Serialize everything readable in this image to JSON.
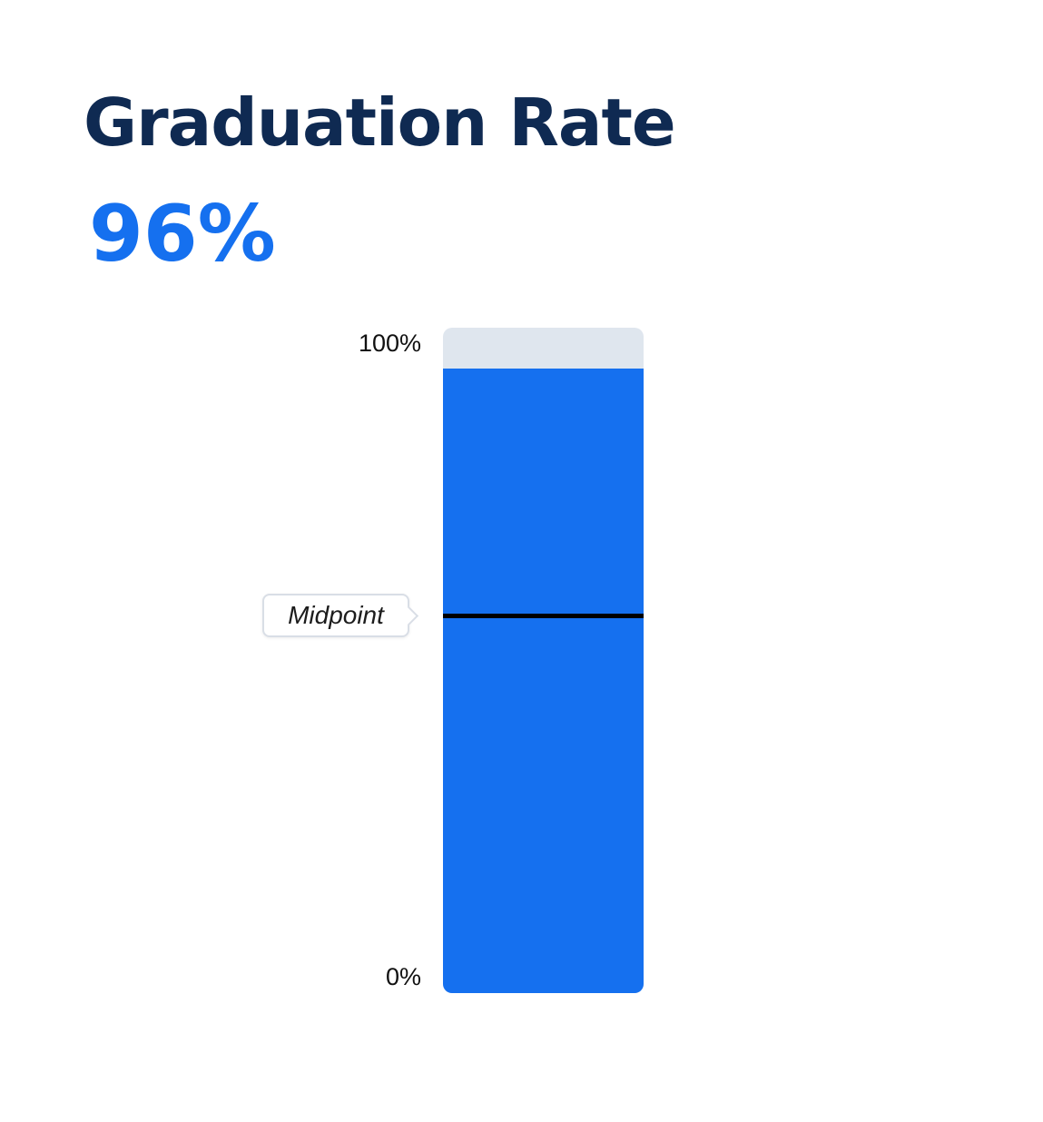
{
  "title": "Graduation Rate",
  "value_text": "96%",
  "colors": {
    "title": "#0f2a52",
    "accent": "#1570ef",
    "track": "#dfe6ee",
    "marker": "#000000"
  },
  "chart_data": {
    "type": "bar",
    "title": "Graduation Rate",
    "categories": [
      ""
    ],
    "values": [
      96
    ],
    "ylim": [
      0,
      100
    ],
    "yunit": "%",
    "ticks": [
      {
        "value": 100,
        "label": "100%"
      },
      {
        "value": 0,
        "label": "0%"
      }
    ],
    "reference_lines": [
      {
        "label": "Midpoint",
        "value": 57
      }
    ],
    "grid": false,
    "legend": "none"
  }
}
